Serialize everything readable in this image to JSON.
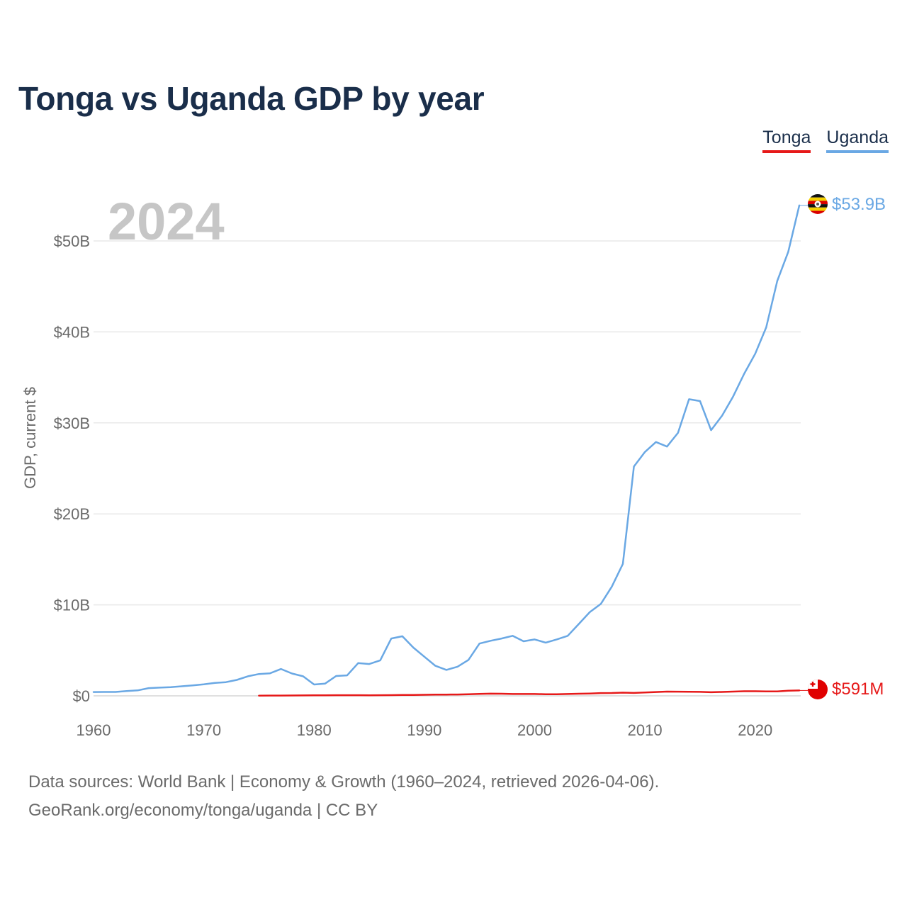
{
  "chart_data": {
    "type": "line",
    "title": "Tonga vs Uganda GDP by year",
    "year_label": "2024",
    "xlabel": "",
    "ylabel": "GDP, current $",
    "xlim": [
      1960,
      2024
    ],
    "ylim": [
      0,
      55
    ],
    "unit": "billions USD",
    "x_ticks": [
      1960,
      1970,
      1980,
      1990,
      2000,
      2010,
      2020
    ],
    "y_ticks": [
      {
        "value": 0,
        "label": "$0"
      },
      {
        "value": 10,
        "label": "$10B"
      },
      {
        "value": 20,
        "label": "$20B"
      },
      {
        "value": 30,
        "label": "$30B"
      },
      {
        "value": 40,
        "label": "$40B"
      },
      {
        "value": 50,
        "label": "$50B"
      }
    ],
    "grid": true,
    "legend": "top-right",
    "series": [
      {
        "name": "Tonga",
        "color": "#e61919",
        "end_label": "$591M",
        "x": [
          1975,
          1976,
          1977,
          1978,
          1979,
          1980,
          1981,
          1982,
          1983,
          1984,
          1985,
          1986,
          1987,
          1988,
          1989,
          1990,
          1991,
          1992,
          1993,
          1994,
          1995,
          1996,
          1997,
          1998,
          1999,
          2000,
          2001,
          2002,
          2003,
          2004,
          2005,
          2006,
          2007,
          2008,
          2009,
          2010,
          2011,
          2012,
          2013,
          2014,
          2015,
          2016,
          2017,
          2018,
          2019,
          2020,
          2021,
          2022,
          2023,
          2024
        ],
        "values": [
          0.02,
          0.03,
          0.03,
          0.04,
          0.05,
          0.06,
          0.06,
          0.07,
          0.07,
          0.07,
          0.06,
          0.07,
          0.08,
          0.09,
          0.1,
          0.12,
          0.13,
          0.14,
          0.15,
          0.17,
          0.22,
          0.24,
          0.23,
          0.2,
          0.2,
          0.2,
          0.18,
          0.17,
          0.2,
          0.23,
          0.26,
          0.3,
          0.31,
          0.35,
          0.32,
          0.37,
          0.42,
          0.47,
          0.46,
          0.45,
          0.44,
          0.4,
          0.43,
          0.47,
          0.51,
          0.51,
          0.49,
          0.49,
          0.56,
          0.591
        ]
      },
      {
        "name": "Uganda",
        "color": "#6aa8e4",
        "end_label": "$53.9B",
        "x": [
          1960,
          1961,
          1962,
          1963,
          1964,
          1965,
          1966,
          1967,
          1968,
          1969,
          1970,
          1971,
          1972,
          1973,
          1974,
          1975,
          1976,
          1977,
          1978,
          1979,
          1980,
          1981,
          1982,
          1983,
          1984,
          1985,
          1986,
          1987,
          1988,
          1989,
          1990,
          1991,
          1992,
          1993,
          1994,
          1995,
          1996,
          1997,
          1998,
          1999,
          2000,
          2001,
          2002,
          2003,
          2004,
          2005,
          2006,
          2007,
          2008,
          2009,
          2010,
          2011,
          2012,
          2013,
          2014,
          2015,
          2016,
          2017,
          2018,
          2019,
          2020,
          2021,
          2022,
          2023,
          2024
        ],
        "values": [
          0.42,
          0.43,
          0.43,
          0.53,
          0.6,
          0.85,
          0.9,
          0.95,
          1.05,
          1.15,
          1.27,
          1.42,
          1.5,
          1.75,
          2.15,
          2.4,
          2.48,
          2.95,
          2.45,
          2.15,
          1.25,
          1.35,
          2.18,
          2.25,
          3.6,
          3.5,
          3.9,
          6.3,
          6.55,
          5.3,
          4.3,
          3.3,
          2.85,
          3.2,
          3.95,
          5.75,
          6.05,
          6.3,
          6.6,
          6.0,
          6.2,
          5.85,
          6.2,
          6.6,
          7.9,
          9.2,
          10.1,
          12.0,
          14.5,
          25.2,
          26.8,
          27.9,
          27.4,
          28.9,
          32.6,
          32.4,
          29.2,
          30.8,
          32.9,
          35.4,
          37.6,
          40.5,
          45.6,
          48.8,
          53.9
        ]
      }
    ]
  },
  "source": {
    "line1": "Data sources: World Bank | Economy & Growth (1960–2024, retrieved 2026-04-06).",
    "line2": "GeoRank.org/economy/tonga/uganda | CC BY"
  }
}
